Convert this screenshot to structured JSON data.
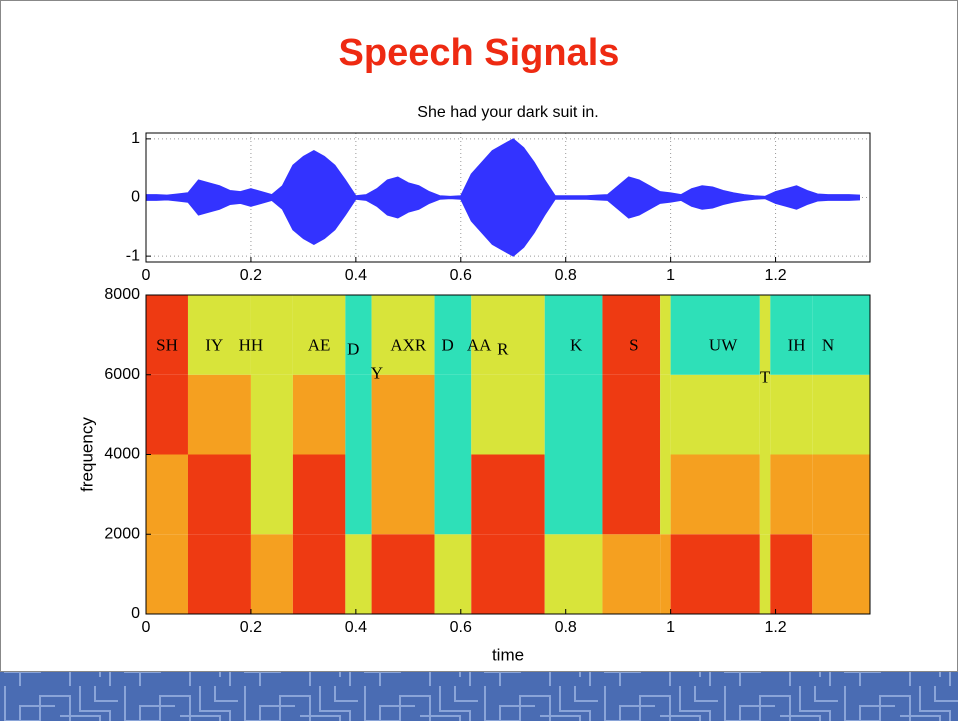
{
  "title": "Speech Signals",
  "chart_data": [
    {
      "type": "waveform",
      "title": "She had your dark suit in.",
      "color": "#3333ff",
      "x": [
        0,
        0.02,
        0.04,
        0.06,
        0.08,
        0.1,
        0.12,
        0.14,
        0.16,
        0.18,
        0.2,
        0.22,
        0.24,
        0.26,
        0.28,
        0.3,
        0.32,
        0.34,
        0.36,
        0.38,
        0.4,
        0.42,
        0.44,
        0.46,
        0.48,
        0.5,
        0.52,
        0.54,
        0.56,
        0.58,
        0.6,
        0.62,
        0.64,
        0.66,
        0.68,
        0.7,
        0.72,
        0.74,
        0.76,
        0.78,
        0.8,
        0.82,
        0.84,
        0.86,
        0.88,
        0.9,
        0.92,
        0.94,
        0.96,
        0.98,
        1,
        1.02,
        1.04,
        1.06,
        1.08,
        1.1,
        1.12,
        1.14,
        1.16,
        1.18,
        1.2,
        1.22,
        1.24,
        1.26,
        1.28,
        1.3,
        1.32,
        1.34,
        1.36
      ],
      "values": [
        0.05,
        0.05,
        0.04,
        0.06,
        0.08,
        0.3,
        0.25,
        0.2,
        0.12,
        0.1,
        0.15,
        0.1,
        0.05,
        0.2,
        0.55,
        0.7,
        0.8,
        0.7,
        0.55,
        0.3,
        0.03,
        0.05,
        0.15,
        0.3,
        0.35,
        0.25,
        0.2,
        0.1,
        0.03,
        0.02,
        0.03,
        0.4,
        0.6,
        0.8,
        0.9,
        1.0,
        0.85,
        0.6,
        0.3,
        0.03,
        0.03,
        0.03,
        0.03,
        0.04,
        0.05,
        0.2,
        0.35,
        0.3,
        0.2,
        0.1,
        0.08,
        0.05,
        0.15,
        0.2,
        0.18,
        0.12,
        0.08,
        0.05,
        0.03,
        0.02,
        0.1,
        0.15,
        0.2,
        0.12,
        0.06,
        0.05,
        0.05,
        0.05,
        0.04
      ],
      "xlim": [
        0,
        1.38
      ],
      "xticks": [
        0,
        0.2,
        0.4,
        0.6,
        0.8,
        1,
        1.2
      ],
      "ylim": [
        -1.1,
        1.1
      ],
      "yticks": [
        -1,
        0,
        1
      ],
      "grid": true
    },
    {
      "type": "spectrogram",
      "x_label": "time",
      "y_label": "frequency",
      "xlim": [
        0,
        1.38
      ],
      "xticks": [
        0,
        0.2,
        0.4,
        0.6,
        0.8,
        1,
        1.2
      ],
      "ylim": [
        0,
        8000
      ],
      "yticks": [
        0,
        2000,
        4000,
        6000,
        8000
      ],
      "bands": [
        0,
        2000,
        4000,
        6000,
        8000
      ],
      "level_colors": [
        "#2ee0b8",
        "#d8e43a",
        "#f5a020",
        "#ee3a12"
      ],
      "segments": [
        {
          "start": 0,
          "end": 0.08,
          "levels": [
            2,
            2,
            3,
            3
          ]
        },
        {
          "start": 0.08,
          "end": 0.2,
          "levels": [
            3,
            3,
            2,
            1
          ]
        },
        {
          "start": 0.2,
          "end": 0.28,
          "levels": [
            2,
            1,
            1,
            1
          ]
        },
        {
          "start": 0.28,
          "end": 0.38,
          "levels": [
            3,
            3,
            2,
            1
          ]
        },
        {
          "start": 0.38,
          "end": 0.43,
          "levels": [
            1,
            0,
            0,
            0
          ]
        },
        {
          "start": 0.43,
          "end": 0.55,
          "levels": [
            3,
            2,
            2,
            1
          ]
        },
        {
          "start": 0.55,
          "end": 0.62,
          "levels": [
            1,
            0,
            0,
            0
          ]
        },
        {
          "start": 0.62,
          "end": 0.76,
          "levels": [
            3,
            3,
            1,
            1
          ]
        },
        {
          "start": 0.76,
          "end": 0.87,
          "levels": [
            1,
            0,
            0,
            0
          ]
        },
        {
          "start": 0.87,
          "end": 0.98,
          "levels": [
            2,
            3,
            3,
            3
          ]
        },
        {
          "start": 0.98,
          "end": 1,
          "levels": [
            2,
            1,
            1,
            1
          ]
        },
        {
          "start": 1,
          "end": 1.17,
          "levels": [
            3,
            2,
            1,
            0
          ]
        },
        {
          "start": 1.17,
          "end": 1.19,
          "levels": [
            1,
            1,
            1,
            1
          ]
        },
        {
          "start": 1.19,
          "end": 1.27,
          "levels": [
            3,
            2,
            1,
            0
          ]
        },
        {
          "start": 1.27,
          "end": 1.38,
          "levels": [
            2,
            2,
            1,
            0
          ]
        }
      ],
      "annotations": [
        {
          "text": "SH",
          "x": 0.04,
          "y": 6700
        },
        {
          "text": "IY",
          "x": 0.13,
          "y": 6700
        },
        {
          "text": "HH",
          "x": 0.2,
          "y": 6700
        },
        {
          "text": "AE",
          "x": 0.33,
          "y": 6700
        },
        {
          "text": "D",
          "x": 0.395,
          "y": 6600
        },
        {
          "text": "Y",
          "x": 0.44,
          "y": 6000
        },
        {
          "text": "AXR",
          "x": 0.5,
          "y": 6700
        },
        {
          "text": "D",
          "x": 0.575,
          "y": 6700
        },
        {
          "text": "AA",
          "x": 0.635,
          "y": 6700
        },
        {
          "text": "R",
          "x": 0.68,
          "y": 6600
        },
        {
          "text": "K",
          "x": 0.82,
          "y": 6700
        },
        {
          "text": "S",
          "x": 0.93,
          "y": 6700
        },
        {
          "text": "UW",
          "x": 1.1,
          "y": 6700
        },
        {
          "text": "T",
          "x": 1.18,
          "y": 5900
        },
        {
          "text": "IH",
          "x": 1.24,
          "y": 6700
        },
        {
          "text": "N",
          "x": 1.3,
          "y": 6700
        }
      ]
    }
  ]
}
